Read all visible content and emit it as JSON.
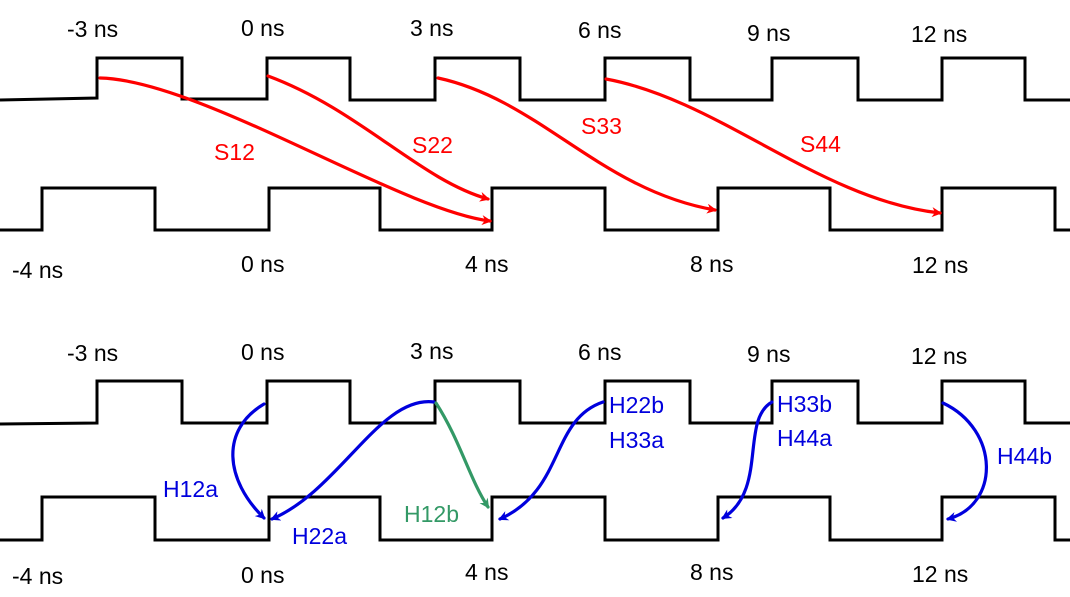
{
  "colors": {
    "wave": "#000000",
    "setup": "#ff0000",
    "hold": "#0000dd",
    "hold_alt": "#339966",
    "background": "#ffffff"
  },
  "top_panel": {
    "launch_ticks": [
      "-3 ns",
      "0 ns",
      "3 ns",
      "6 ns",
      "9 ns",
      "12 ns"
    ],
    "capture_ticks": [
      "-4 ns",
      "0 ns",
      "4 ns",
      "8 ns",
      "12 ns"
    ],
    "setup_arrows": [
      {
        "label": "S12",
        "from_ns": -3,
        "to_ns": 4
      },
      {
        "label": "S22",
        "from_ns": 0,
        "to_ns": 4
      },
      {
        "label": "S33",
        "from_ns": 3,
        "to_ns": 8
      },
      {
        "label": "S44",
        "from_ns": 6,
        "to_ns": 12
      }
    ]
  },
  "bottom_panel": {
    "launch_ticks": [
      "-3 ns",
      "0 ns",
      "3 ns",
      "6 ns",
      "9 ns",
      "12 ns"
    ],
    "capture_ticks": [
      "-4 ns",
      "0 ns",
      "4 ns",
      "8 ns",
      "12 ns"
    ],
    "hold_arrows": [
      {
        "label": "H12a",
        "from_ns": 0,
        "to_ns": 0
      },
      {
        "label": "H22a",
        "from_ns": 3,
        "to_ns": 0
      },
      {
        "label": "H12b",
        "from_ns": 3,
        "to_ns": 4
      },
      {
        "label": "H22b",
        "from_ns": 6,
        "to_ns": 4
      },
      {
        "label": "H33a",
        "from_ns": 6,
        "to_ns": 4
      },
      {
        "label": "H33b",
        "from_ns": 9,
        "to_ns": 8
      },
      {
        "label": "H44a",
        "from_ns": 9,
        "to_ns": 8
      },
      {
        "label": "H44b",
        "from_ns": 12,
        "to_ns": 12
      }
    ]
  }
}
